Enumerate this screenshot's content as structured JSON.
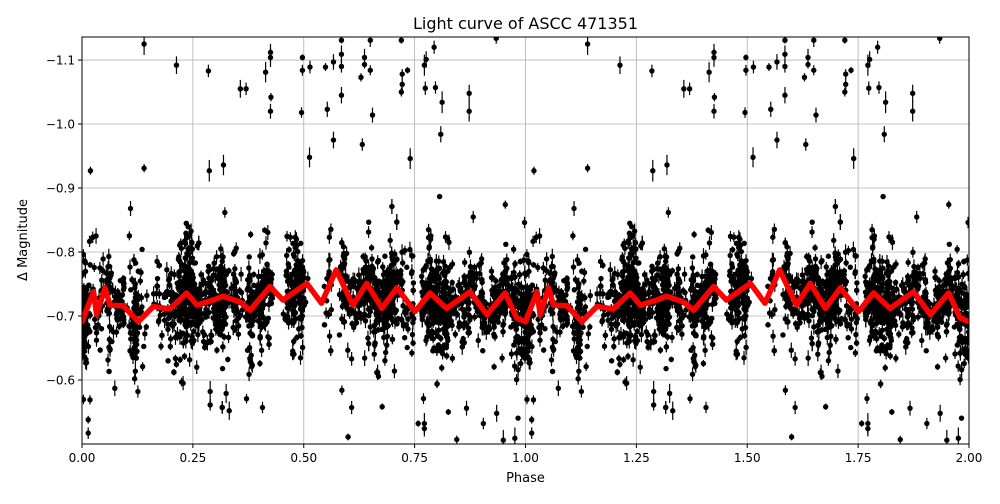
{
  "chart_data": {
    "type": "scatter",
    "title": "Light curve of ASCC 471351",
    "xlabel": "Phase",
    "ylabel": "Δ Magnitude",
    "xlim": [
      0,
      2
    ],
    "ylim": [
      -0.5,
      -1.136
    ],
    "y_inverted": true,
    "grid": true,
    "x_ticks": [
      "0.00",
      "0.25",
      "0.50",
      "0.75",
      "1.00",
      "1.25",
      "1.50",
      "1.75",
      "2.00"
    ],
    "x_tick_values": [
      0,
      0.25,
      0.5,
      0.75,
      1,
      1.25,
      1.5,
      1.75,
      2
    ],
    "y_ticks": [
      "−1.1",
      "−1.0",
      "−0.9",
      "−0.8",
      "−0.7",
      "−0.6"
    ],
    "y_tick_values": [
      -1.1,
      -1.0,
      -0.9,
      -0.8,
      -0.7,
      -0.6
    ],
    "fold_period_repeats": 2,
    "points_color": "#000000",
    "curve_color": "#ff0000",
    "outlier_points": [
      [
        0.14,
        -1.125
      ],
      [
        0.213,
        -1.092
      ],
      [
        0.285,
        -1.083
      ],
      [
        0.357,
        -1.055
      ],
      [
        0.37,
        -1.055
      ],
      [
        0.414,
        -1.081
      ],
      [
        0.425,
        -1.112
      ],
      [
        0.425,
        -1.104
      ],
      [
        0.426,
        -1.042
      ],
      [
        0.425,
        -1.02
      ],
      [
        0.497,
        -1.104
      ],
      [
        0.497,
        -1.084
      ],
      [
        0.514,
        -1.089
      ],
      [
        0.495,
        -1.018
      ],
      [
        0.549,
        -1.089
      ],
      [
        0.567,
        -1.097
      ],
      [
        0.585,
        -1.131
      ],
      [
        0.585,
        -1.109
      ],
      [
        0.585,
        -1.09
      ],
      [
        0.585,
        -1.045
      ],
      [
        0.553,
        -1.023
      ],
      [
        0.629,
        -1.073
      ],
      [
        0.637,
        -1.104
      ],
      [
        0.637,
        -1.093
      ],
      [
        0.65,
        -1.084
      ],
      [
        0.65,
        -1.131
      ],
      [
        0.655,
        -1.014
      ],
      [
        0.72,
        -1.131
      ],
      [
        0.722,
        -1.078
      ],
      [
        0.722,
        -1.062
      ],
      [
        0.72,
        -1.05
      ],
      [
        0.734,
        -1.084
      ],
      [
        0.794,
        -1.12
      ],
      [
        0.776,
        -1.101
      ],
      [
        0.772,
        -1.092
      ],
      [
        0.774,
        -1.056
      ],
      [
        0.797,
        -1.057
      ],
      [
        0.812,
        -1.034
      ],
      [
        0.873,
        -1.048
      ],
      [
        0.873,
        -1.02
      ],
      [
        0.809,
        -0.984
      ],
      [
        0.567,
        -0.975
      ],
      [
        0.632,
        -0.968
      ],
      [
        0.513,
        -0.948
      ],
      [
        0.74,
        -0.946
      ],
      [
        0.019,
        -0.927
      ],
      [
        0.14,
        -0.931
      ],
      [
        0.319,
        -0.936
      ],
      [
        0.287,
        -0.927
      ],
      [
        0.934,
        -1.134
      ],
      [
        0.014,
        -0.517
      ],
      [
        0.014,
        -0.538
      ],
      [
        0.018,
        -0.569
      ],
      [
        0.074,
        -0.587
      ],
      [
        0.126,
        -0.582
      ],
      [
        0.228,
        -0.595
      ],
      [
        0.289,
        -0.561
      ],
      [
        0.289,
        -0.582
      ],
      [
        0.325,
        -0.579
      ],
      [
        0.332,
        -0.552
      ],
      [
        0.407,
        -0.557
      ],
      [
        0.586,
        -0.584
      ],
      [
        0.608,
        -0.557
      ],
      [
        0.6,
        -0.511
      ],
      [
        0.77,
        -0.571
      ],
      [
        0.758,
        -0.532
      ],
      [
        0.772,
        -0.532
      ],
      [
        0.772,
        -0.524
      ],
      [
        0.826,
        -0.55
      ],
      [
        0.845,
        -0.507
      ],
      [
        0.867,
        -0.556
      ],
      [
        0.935,
        -0.548
      ],
      [
        0.95,
        -0.506
      ],
      [
        0.976,
        -0.509
      ],
      [
        0.905,
        -0.532
      ]
    ],
    "binned_curve": {
      "phase": [
        0,
        0.026,
        0.033,
        0.052,
        0.063,
        0.093,
        0.127,
        0.161,
        0.198,
        0.236,
        0.259,
        0.296,
        0.318,
        0.356,
        0.379,
        0.424,
        0.453,
        0.507,
        0.54,
        0.573,
        0.611,
        0.642,
        0.676,
        0.71,
        0.751,
        0.785,
        0.822,
        0.875,
        0.913,
        0.954,
        0.98,
        1.0
      ],
      "magnitude": [
        -0.691,
        -0.738,
        -0.702,
        -0.744,
        -0.717,
        -0.716,
        -0.691,
        -0.715,
        -0.711,
        -0.736,
        -0.717,
        -0.725,
        -0.731,
        -0.722,
        -0.709,
        -0.746,
        -0.725,
        -0.751,
        -0.72,
        -0.772,
        -0.717,
        -0.751,
        -0.712,
        -0.744,
        -0.707,
        -0.736,
        -0.712,
        -0.738,
        -0.702,
        -0.736,
        -0.697,
        -0.691
      ]
    }
  }
}
